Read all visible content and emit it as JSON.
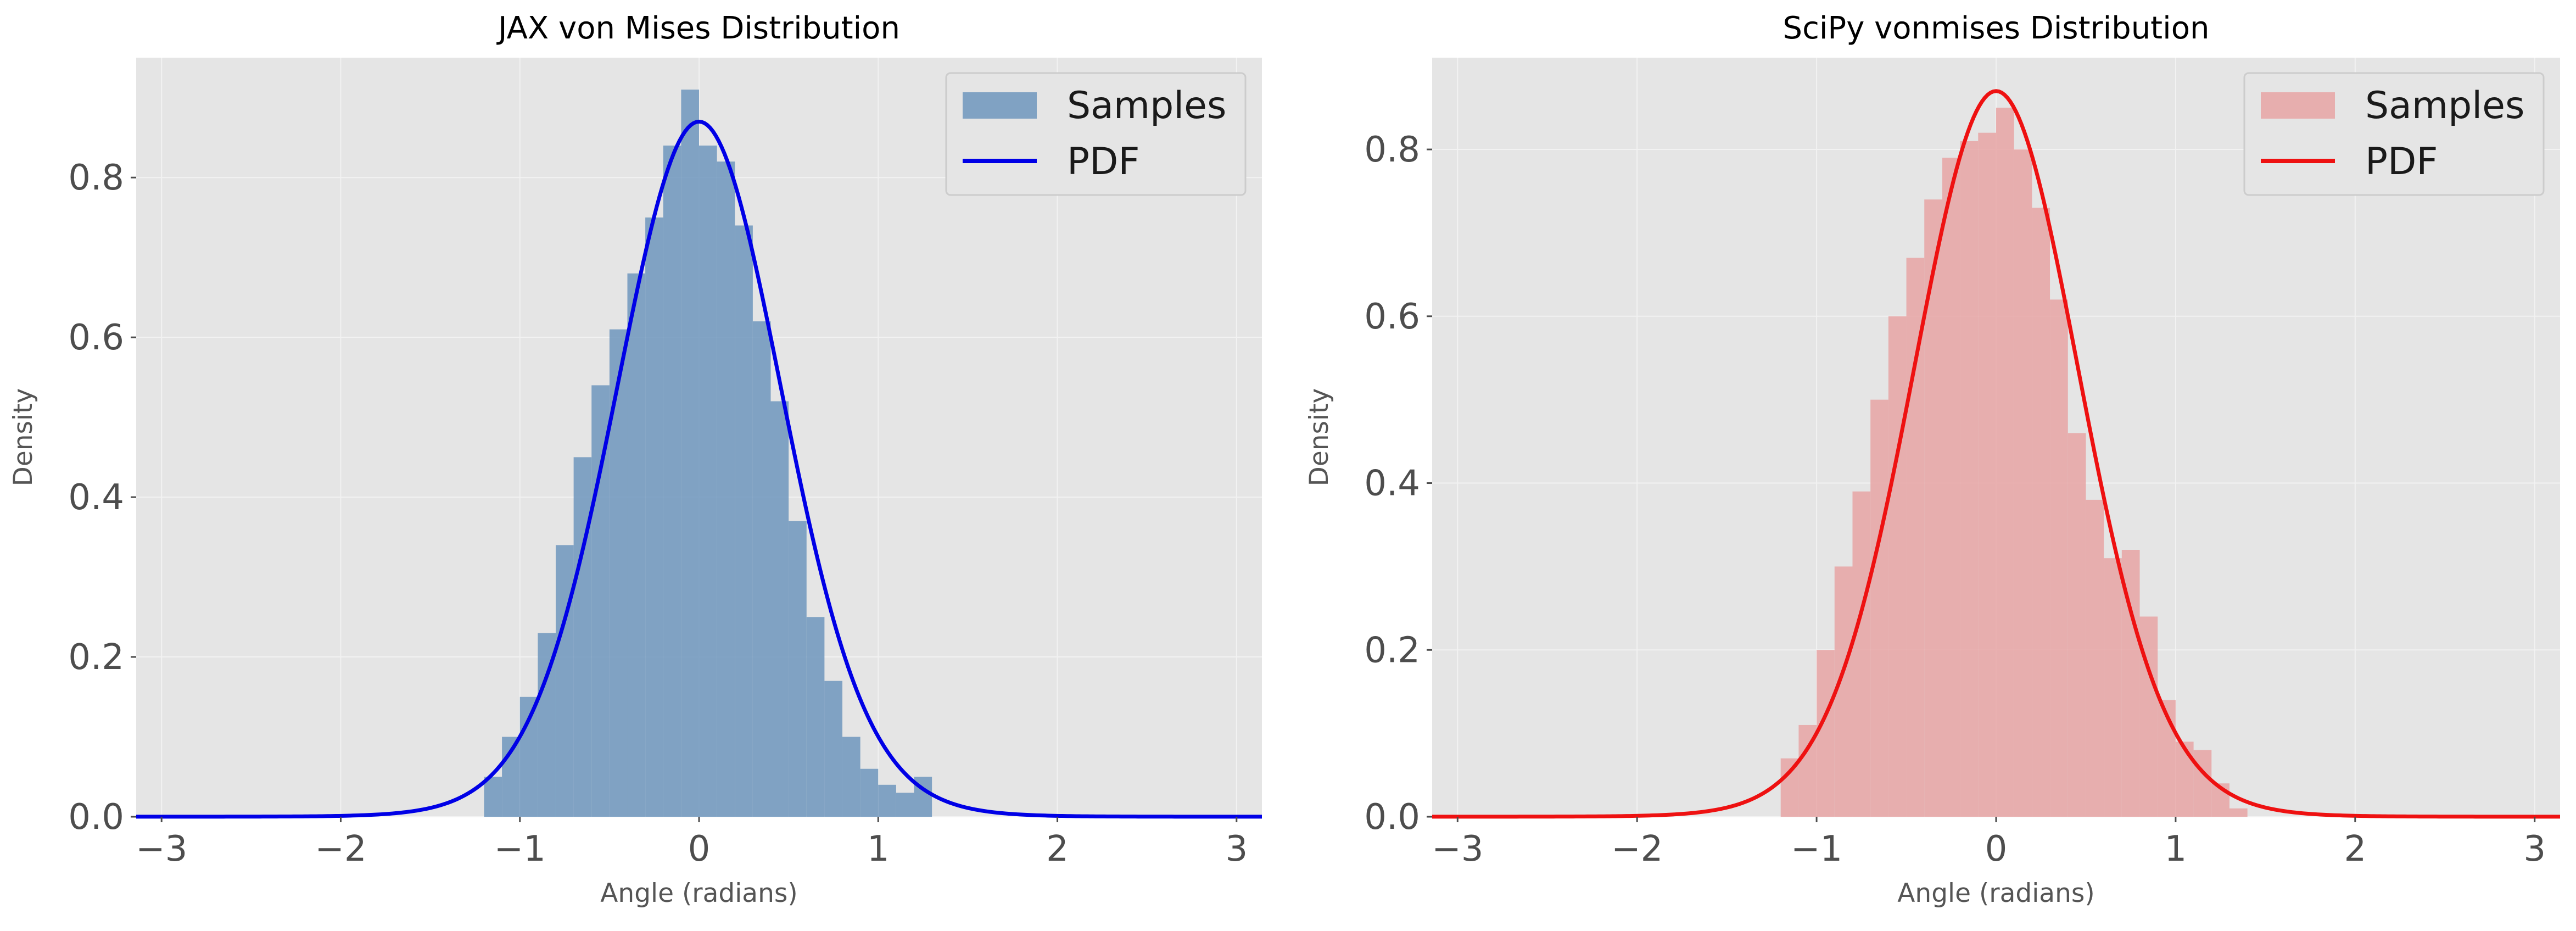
{
  "chart_data": [
    {
      "type": "bar",
      "title": "JAX von Mises Distribution",
      "xlabel": "Angle (radians)",
      "ylabel": "Density",
      "xlim": [
        -3.1416,
        3.1416
      ],
      "ylim": [
        0,
        0.95
      ],
      "grid": true,
      "legend_position": "top-right",
      "xticks": [
        -3,
        -2,
        -1,
        0,
        1,
        2,
        3
      ],
      "yticks": [
        0.0,
        0.2,
        0.4,
        0.6,
        0.8
      ],
      "histogram": {
        "name": "Samples",
        "color": "#6f97bd",
        "bin_width": 0.1,
        "bins": [
          {
            "x0": -1.2,
            "x1": -1.1,
            "density": 0.05
          },
          {
            "x0": -1.1,
            "x1": -1.0,
            "density": 0.1
          },
          {
            "x0": -1.0,
            "x1": -0.9,
            "density": 0.15
          },
          {
            "x0": -0.9,
            "x1": -0.8,
            "density": 0.23
          },
          {
            "x0": -0.8,
            "x1": -0.7,
            "density": 0.34
          },
          {
            "x0": -0.7,
            "x1": -0.6,
            "density": 0.45
          },
          {
            "x0": -0.6,
            "x1": -0.5,
            "density": 0.54
          },
          {
            "x0": -0.5,
            "x1": -0.4,
            "density": 0.61
          },
          {
            "x0": -0.4,
            "x1": -0.3,
            "density": 0.68
          },
          {
            "x0": -0.3,
            "x1": -0.2,
            "density": 0.75
          },
          {
            "x0": -0.2,
            "x1": -0.1,
            "density": 0.84
          },
          {
            "x0": -0.1,
            "x1": 0.0,
            "density": 0.91
          },
          {
            "x0": 0.0,
            "x1": 0.1,
            "density": 0.84
          },
          {
            "x0": 0.1,
            "x1": 0.2,
            "density": 0.82
          },
          {
            "x0": 0.2,
            "x1": 0.3,
            "density": 0.74
          },
          {
            "x0": 0.3,
            "x1": 0.4,
            "density": 0.62
          },
          {
            "x0": 0.4,
            "x1": 0.5,
            "density": 0.52
          },
          {
            "x0": 0.5,
            "x1": 0.6,
            "density": 0.37
          },
          {
            "x0": 0.6,
            "x1": 0.7,
            "density": 0.25
          },
          {
            "x0": 0.7,
            "x1": 0.8,
            "density": 0.17
          },
          {
            "x0": 0.8,
            "x1": 0.9,
            "density": 0.1
          },
          {
            "x0": 0.9,
            "x1": 1.0,
            "density": 0.06
          },
          {
            "x0": 1.0,
            "x1": 1.1,
            "density": 0.04
          },
          {
            "x0": 1.1,
            "x1": 1.2,
            "density": 0.03
          },
          {
            "x0": 1.2,
            "x1": 1.3,
            "density": 0.05
          }
        ]
      },
      "pdf": {
        "name": "PDF",
        "color": "#0000e6",
        "mu": 0,
        "kappa": 4.7,
        "peak": 0.87
      }
    },
    {
      "type": "bar",
      "title": "SciPy vonmises Distribution",
      "xlabel": "Angle (radians)",
      "ylabel": "Density",
      "xlim": [
        -3.1416,
        3.1416
      ],
      "ylim": [
        0,
        0.91
      ],
      "grid": true,
      "legend_position": "top-right",
      "xticks": [
        -3,
        -2,
        -1,
        0,
        1,
        2,
        3
      ],
      "yticks": [
        0.0,
        0.2,
        0.4,
        0.6,
        0.8
      ],
      "histogram": {
        "name": "Samples",
        "color": "#e8a4a4",
        "bin_width": 0.1,
        "bins": [
          {
            "x0": -1.2,
            "x1": -1.1,
            "density": 0.07
          },
          {
            "x0": -1.1,
            "x1": -1.0,
            "density": 0.11
          },
          {
            "x0": -1.0,
            "x1": -0.9,
            "density": 0.2
          },
          {
            "x0": -0.9,
            "x1": -0.8,
            "density": 0.3
          },
          {
            "x0": -0.8,
            "x1": -0.7,
            "density": 0.39
          },
          {
            "x0": -0.7,
            "x1": -0.6,
            "density": 0.5
          },
          {
            "x0": -0.6,
            "x1": -0.5,
            "density": 0.6
          },
          {
            "x0": -0.5,
            "x1": -0.4,
            "density": 0.67
          },
          {
            "x0": -0.4,
            "x1": -0.3,
            "density": 0.74
          },
          {
            "x0": -0.3,
            "x1": -0.2,
            "density": 0.79
          },
          {
            "x0": -0.2,
            "x1": -0.1,
            "density": 0.81
          },
          {
            "x0": -0.1,
            "x1": 0.0,
            "density": 0.82
          },
          {
            "x0": 0.0,
            "x1": 0.1,
            "density": 0.85
          },
          {
            "x0": 0.1,
            "x1": 0.2,
            "density": 0.8
          },
          {
            "x0": 0.2,
            "x1": 0.3,
            "density": 0.73
          },
          {
            "x0": 0.3,
            "x1": 0.4,
            "density": 0.62
          },
          {
            "x0": 0.4,
            "x1": 0.5,
            "density": 0.46
          },
          {
            "x0": 0.5,
            "x1": 0.6,
            "density": 0.38
          },
          {
            "x0": 0.6,
            "x1": 0.7,
            "density": 0.31
          },
          {
            "x0": 0.7,
            "x1": 0.8,
            "density": 0.32
          },
          {
            "x0": 0.8,
            "x1": 0.9,
            "density": 0.24
          },
          {
            "x0": 0.9,
            "x1": 1.0,
            "density": 0.14
          },
          {
            "x0": 1.0,
            "x1": 1.1,
            "density": 0.09
          },
          {
            "x0": 1.1,
            "x1": 1.2,
            "density": 0.08
          },
          {
            "x0": 1.2,
            "x1": 1.3,
            "density": 0.04
          },
          {
            "x0": 1.3,
            "x1": 1.4,
            "density": 0.01
          }
        ]
      },
      "pdf": {
        "name": "PDF",
        "color": "#ee1111",
        "mu": 0,
        "kappa": 4.7,
        "peak": 0.87
      }
    }
  ]
}
